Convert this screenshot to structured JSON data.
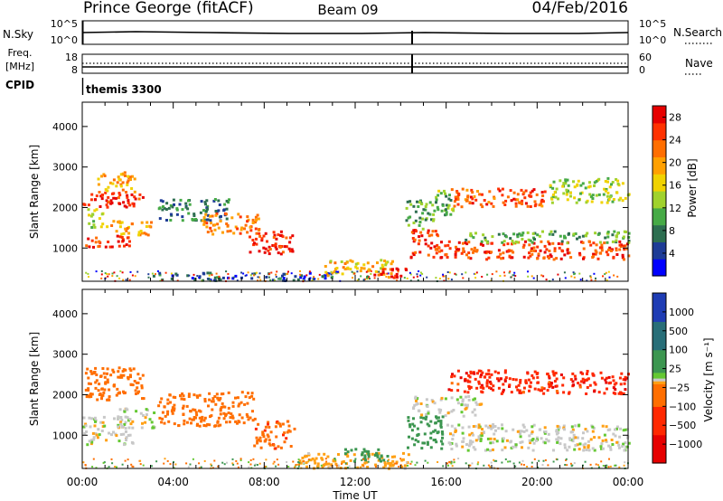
{
  "header": {
    "station": "Prince George (fitACF)",
    "beam": "Beam 09",
    "date": "04/Feb/2016"
  },
  "params": {
    "nsky_label": "N.Sky",
    "nsky_ticks": [
      "10^5",
      "10^0"
    ],
    "nsearch_label": "N.Search",
    "nsearch_ticks": [
      "10^5",
      "10^0"
    ],
    "freq_label": "Freq.",
    "freq_unit": "[MHz]",
    "freq_ticks": [
      "18",
      "8"
    ],
    "nave_label": "Nave",
    "nave_ticks": [
      "60",
      "0"
    ],
    "cpid_label": "CPID",
    "cpid_value": "themis 3300"
  },
  "colors": {
    "power": [
      "#0000ff",
      "#1e3c96",
      "#2d6e50",
      "#46aa46",
      "#a0d22d",
      "#f0d200",
      "#ffa000",
      "#ff6e00",
      "#ff3200",
      "#e60000"
    ],
    "velocity": [
      "#1e3cb4",
      "#286e78",
      "#3c9650",
      "#64c832",
      "#c8c8c8",
      "#c8c8c8",
      "#f0dc3c",
      "#ffa014",
      "#ff6e00",
      "#ff2800",
      "#e60000"
    ],
    "velocity_edges": [
      -1500,
      -1000,
      -500,
      -100,
      -25,
      25,
      100,
      500,
      1000,
      1500
    ],
    "velocity_order": [
      "#e60000",
      "#ff2800",
      "#ff6e00",
      "#ffa014",
      "#c8c8c8",
      "#64c832",
      "#3c9650",
      "#286e78",
      "#1e3cb4"
    ]
  },
  "chart_data": [
    {
      "type": "heatmap",
      "quantity": "Power",
      "ylabel": "Slant Range [km]",
      "xlim": [
        0,
        24
      ],
      "ylim": [
        180,
        4600
      ],
      "y_ticks": [
        "1000",
        "2000",
        "3000",
        "4000"
      ],
      "colorbar_label": "Power [dB]",
      "colorbar_ticks": [
        "4",
        "8",
        "12",
        "16",
        "20",
        "24",
        "28"
      ],
      "colorbar_range": [
        0,
        30
      ],
      "regions": [
        {
          "t0": 0.0,
          "t1": 2.7,
          "r0": 2000,
          "r1": 2400,
          "v": 27
        },
        {
          "t0": 0.6,
          "t1": 2.3,
          "r0": 2400,
          "r1": 2900,
          "v": 20
        },
        {
          "t0": 0.1,
          "t1": 2.1,
          "r0": 1050,
          "r1": 1350,
          "v": 26
        },
        {
          "t0": 1.0,
          "t1": 3.0,
          "r0": 1350,
          "r1": 1700,
          "v": 19
        },
        {
          "t0": 0.2,
          "t1": 0.9,
          "r0": 1500,
          "r1": 2000,
          "v": 13
        },
        {
          "t0": 3.3,
          "t1": 6.5,
          "r0": 1700,
          "r1": 2250,
          "v": 8
        },
        {
          "t0": 5.2,
          "t1": 7.8,
          "r0": 1350,
          "r1": 1900,
          "v": 22
        },
        {
          "t0": 7.3,
          "t1": 9.2,
          "r0": 850,
          "r1": 1450,
          "v": 27
        },
        {
          "t0": 3.0,
          "t1": 11.0,
          "r0": 220,
          "r1": 420,
          "v": 6
        },
        {
          "t0": 10.6,
          "t1": 13.6,
          "r0": 300,
          "r1": 750,
          "v": 18
        },
        {
          "t0": 12.5,
          "t1": 14.2,
          "r0": 300,
          "r1": 560,
          "v": 27
        },
        {
          "t0": 14.4,
          "t1": 15.6,
          "r0": 750,
          "r1": 1500,
          "v": 26
        },
        {
          "t0": 14.2,
          "t1": 15.4,
          "r0": 1500,
          "r1": 2200,
          "v": 11
        },
        {
          "t0": 15.6,
          "t1": 24.0,
          "r0": 750,
          "r1": 1200,
          "v": 25
        },
        {
          "t0": 16.8,
          "t1": 24.0,
          "r0": 1150,
          "r1": 1450,
          "v": 11
        },
        {
          "t0": 16.2,
          "t1": 20.5,
          "r0": 2050,
          "r1": 2500,
          "v": 24
        },
        {
          "t0": 20.5,
          "t1": 24.0,
          "r0": 2150,
          "r1": 2750,
          "v": 14
        },
        {
          "t0": 15.4,
          "t1": 16.3,
          "r0": 1800,
          "r1": 2450,
          "v": 12
        }
      ]
    },
    {
      "type": "heatmap",
      "quantity": "Velocity",
      "ylabel": "Slant Range [km]",
      "xlim": [
        0,
        24
      ],
      "ylim": [
        180,
        4600
      ],
      "y_ticks": [
        "1000",
        "2000",
        "3000",
        "4000"
      ],
      "colorbar_label": "Velocity [m s⁻¹]",
      "colorbar_ticks": [
        "1000",
        "500",
        "100",
        "25",
        "−25",
        "−100",
        "−500",
        "−1000"
      ],
      "colorbar_range": [
        -1500,
        1500
      ],
      "xlabel": "Time UT",
      "x_ticks": [
        "00:00",
        "04:00",
        "08:00",
        "12:00",
        "16:00",
        "20:00",
        "00:00"
      ],
      "regions": [
        {
          "t0": 0.0,
          "t1": 2.2,
          "r0": 800,
          "r1": 1500,
          "v": 0
        },
        {
          "t0": 0.1,
          "t1": 2.7,
          "r0": 1900,
          "r1": 2700,
          "v": -350
        },
        {
          "t0": 1.6,
          "t1": 3.2,
          "r0": 1200,
          "r1": 1700,
          "v": 0
        },
        {
          "t0": 3.3,
          "t1": 7.6,
          "r0": 1250,
          "r1": 2100,
          "v": -200
        },
        {
          "t0": 7.5,
          "t1": 9.3,
          "r0": 700,
          "r1": 1400,
          "v": -400
        },
        {
          "t0": 9.5,
          "t1": 14.3,
          "r0": 200,
          "r1": 600,
          "v": -60
        },
        {
          "t0": 11.5,
          "t1": 13.5,
          "r0": 380,
          "r1": 700,
          "v": 150
        },
        {
          "t0": 14.2,
          "t1": 15.8,
          "r0": 700,
          "r1": 1500,
          "v": 180
        },
        {
          "t0": 14.5,
          "t1": 17.5,
          "r0": 1500,
          "r1": 2000,
          "v": 0
        },
        {
          "t0": 16.0,
          "t1": 24.0,
          "r0": 650,
          "r1": 1300,
          "v": 0
        },
        {
          "t0": 16.0,
          "t1": 24.0,
          "r0": 2050,
          "r1": 2650,
          "v": -800
        }
      ]
    }
  ]
}
